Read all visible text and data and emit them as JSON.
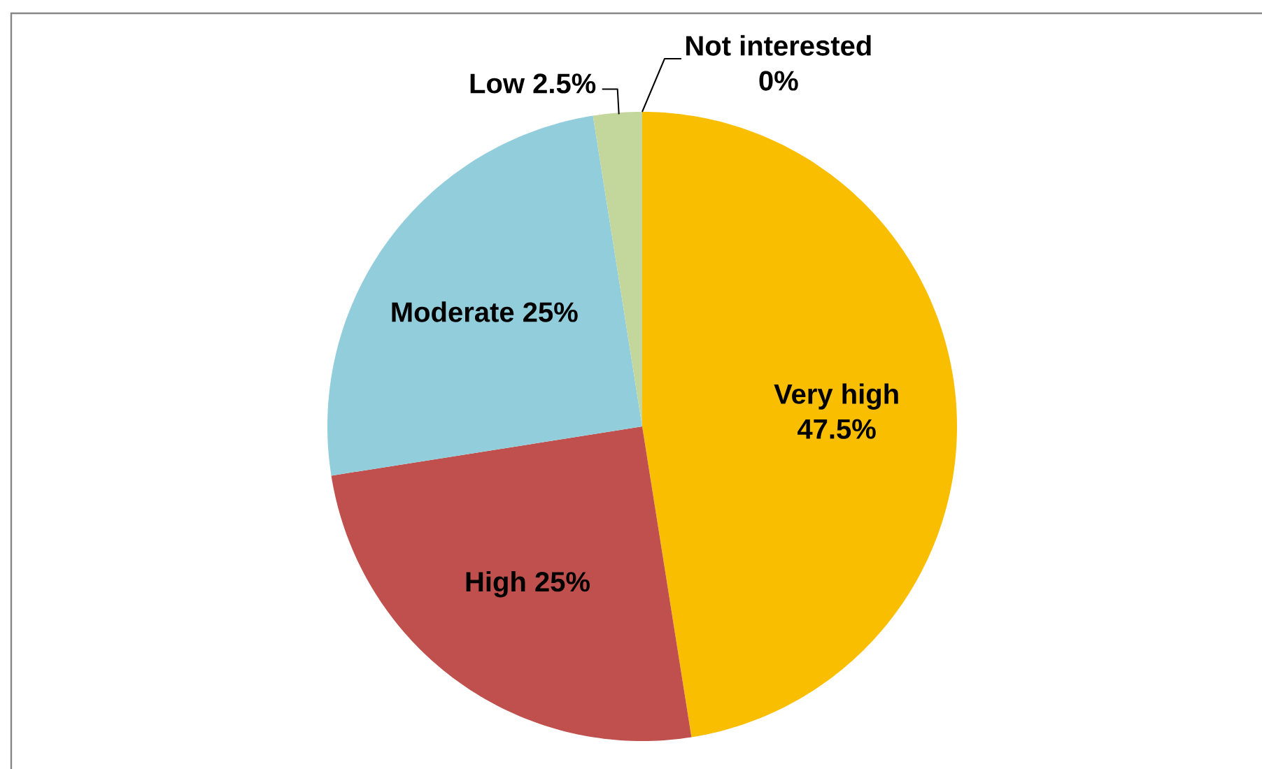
{
  "chart_data": {
    "type": "pie",
    "categories": [
      "Very high",
      "High",
      "Moderate",
      "Low",
      "Not interested"
    ],
    "values": [
      47.5,
      25,
      25,
      2.5,
      0
    ],
    "colors": [
      "#fabe00",
      "#c0504d",
      "#92cddc",
      "#c3d69b",
      null
    ],
    "value_labels": [
      "47.5%",
      "25%",
      "25%",
      "2.5%",
      "0%"
    ]
  }
}
